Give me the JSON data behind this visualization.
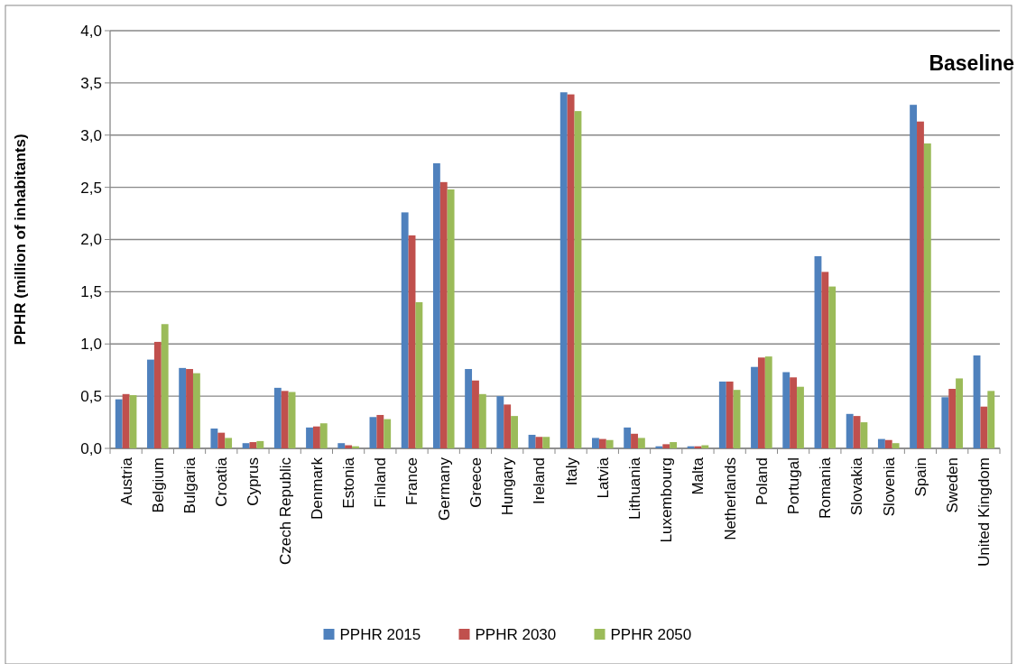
{
  "chart_data": {
    "type": "bar",
    "ylabel": "PPHR (million of inhabitants)",
    "annotations": [
      "Baseline"
    ],
    "categories": [
      "Austria",
      "Belgium",
      "Bulgaria",
      "Croatia",
      "Cyprus",
      "Czech Republic",
      "Denmark",
      "Estonia",
      "Finland",
      "France",
      "Germany",
      "Greece",
      "Hungary",
      "Ireland",
      "Italy",
      "Latvia",
      "Lithuania",
      "Luxembourg",
      "Malta",
      "Netherlands",
      "Poland",
      "Portugal",
      "Romania",
      "Slovakia",
      "Slovenia",
      "Spain",
      "Sweden",
      "United Kingdom"
    ],
    "series": [
      {
        "name": "PPHR 2015",
        "color": "#4f81bd",
        "values": [
          0.47,
          0.85,
          0.77,
          0.19,
          0.05,
          0.58,
          0.2,
          0.05,
          0.3,
          2.26,
          2.73,
          0.76,
          0.5,
          0.13,
          3.41,
          0.1,
          0.2,
          0.02,
          0.02,
          0.64,
          0.78,
          0.73,
          1.84,
          0.33,
          0.09,
          3.29,
          0.49,
          0.89
        ]
      },
      {
        "name": "PPHR 2030",
        "color": "#c0504d",
        "values": [
          0.52,
          1.02,
          0.76,
          0.15,
          0.06,
          0.55,
          0.21,
          0.03,
          0.32,
          2.04,
          2.55,
          0.65,
          0.42,
          0.11,
          3.39,
          0.09,
          0.14,
          0.04,
          0.02,
          0.64,
          0.87,
          0.68,
          1.69,
          0.31,
          0.08,
          3.13,
          0.57,
          0.4
        ]
      },
      {
        "name": "PPHR 2050",
        "color": "#9bbb59",
        "values": [
          0.51,
          1.19,
          0.72,
          0.1,
          0.07,
          0.54,
          0.24,
          0.02,
          0.28,
          1.4,
          2.48,
          0.52,
          0.31,
          0.11,
          3.23,
          0.08,
          0.1,
          0.06,
          0.03,
          0.56,
          0.88,
          0.59,
          1.55,
          0.25,
          0.05,
          2.92,
          0.67,
          0.55
        ]
      }
    ],
    "ylim": [
      0,
      4
    ],
    "yticks": [
      {
        "value": 0,
        "label": "0,0"
      },
      {
        "value": 0.5,
        "label": "0,5"
      },
      {
        "value": 1,
        "label": "1,0"
      },
      {
        "value": 1.5,
        "label": "1,5"
      },
      {
        "value": 2,
        "label": "2,0"
      },
      {
        "value": 2.5,
        "label": "2,5"
      },
      {
        "value": 3,
        "label": "3,0"
      },
      {
        "value": 3.5,
        "label": "3,5"
      },
      {
        "value": 4,
        "label": "4,0"
      }
    ],
    "grid": "y",
    "legend": "bottom"
  }
}
